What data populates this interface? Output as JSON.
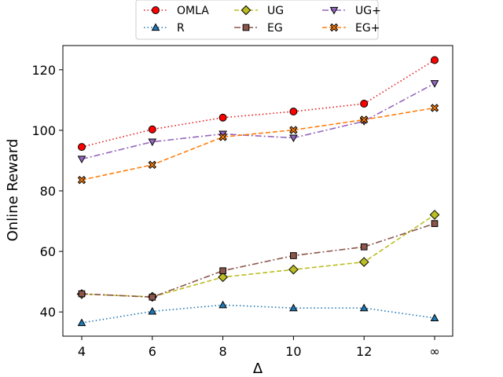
{
  "chart_data": {
    "type": "line",
    "title": "",
    "xlabel": "Δ",
    "ylabel": "Online Reward",
    "categories": [
      "4",
      "6",
      "8",
      "10",
      "12",
      "∞"
    ],
    "ylim": [
      32,
      128
    ],
    "yticks": [
      40,
      60,
      80,
      100,
      120
    ],
    "grid": false,
    "legend_position": "top-center",
    "series": [
      {
        "name": "OMLA",
        "color": "#e41a1c",
        "dash": "dotted",
        "marker": "circle",
        "markerColor": "#ff0000",
        "values": [
          94.5,
          100.3,
          104.2,
          106.2,
          108.8,
          123.2
        ]
      },
      {
        "name": "R",
        "color": "#1f77b4",
        "dash": "dotted",
        "marker": "triangle-up",
        "markerColor": "#1f77b4",
        "values": [
          36.4,
          40.2,
          42.3,
          41.3,
          41.3,
          38.0
        ]
      },
      {
        "name": "UG",
        "color": "#bcbd22",
        "dash": "dashed",
        "marker": "diamond",
        "markerColor": "#bcbd22",
        "values": [
          45.9,
          45.0,
          51.5,
          54.0,
          56.5,
          72.1
        ]
      },
      {
        "name": "EG",
        "color": "#8c564b",
        "dash": "dashdot",
        "marker": "square",
        "markerColor": "#8c564b",
        "values": [
          46.0,
          44.9,
          53.6,
          58.6,
          61.5,
          69.2
        ]
      },
      {
        "name": "UG+",
        "color": "#9467bd",
        "dash": "dashdot",
        "marker": "triangle-down",
        "markerColor": "#9467bd",
        "values": [
          90.5,
          96.2,
          98.8,
          97.5,
          103.0,
          115.5
        ]
      },
      {
        "name": "EG+",
        "color": "#ff7f0e",
        "dash": "dashed",
        "marker": "x-filled",
        "markerColor": "#ff7f0e",
        "values": [
          83.6,
          88.6,
          97.8,
          100.1,
          103.5,
          107.4
        ]
      }
    ]
  }
}
